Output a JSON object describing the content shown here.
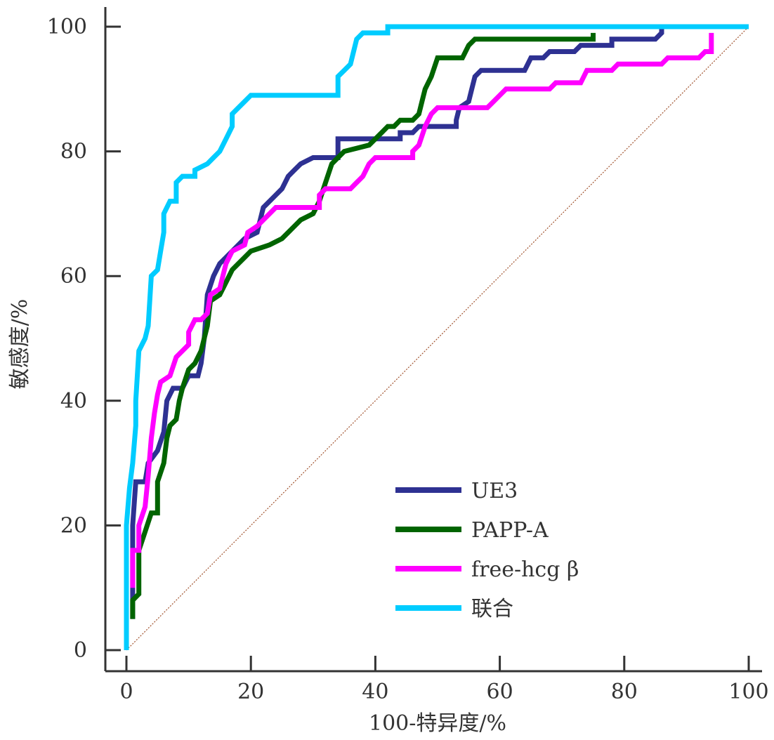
{
  "chart_data": {
    "type": "line",
    "title": "",
    "xlabel": "100-特异度/%",
    "ylabel": "敏感度/%",
    "xlim": [
      0,
      100
    ],
    "ylim": [
      0,
      100
    ],
    "x_ticks": [
      "0",
      "20",
      "40",
      "60",
      "80",
      "100"
    ],
    "y_ticks": [
      "0",
      "20",
      "40",
      "60",
      "80",
      "100"
    ],
    "grid": false,
    "legend_position": "bottom-right",
    "reference_line": {
      "name": "diagonal",
      "color": "#a0522d",
      "points": [
        [
          0,
          0
        ],
        [
          100,
          100
        ]
      ]
    },
    "series": [
      {
        "name": "UE3",
        "color": "#2e3192",
        "points": [
          [
            1,
            5
          ],
          [
            1,
            20
          ],
          [
            1.5,
            27
          ],
          [
            3,
            27
          ],
          [
            3.5,
            30
          ],
          [
            5,
            32
          ],
          [
            6,
            35
          ],
          [
            6.5,
            40
          ],
          [
            7.5,
            42
          ],
          [
            9,
            42
          ],
          [
            10,
            44
          ],
          [
            11.5,
            44
          ],
          [
            12,
            46
          ],
          [
            12.5,
            50
          ],
          [
            13,
            57
          ],
          [
            14,
            60
          ],
          [
            15,
            62
          ],
          [
            16,
            63
          ],
          [
            17,
            64
          ],
          [
            19,
            66
          ],
          [
            21,
            67
          ],
          [
            22,
            71
          ],
          [
            24,
            73
          ],
          [
            25,
            74
          ],
          [
            26,
            76
          ],
          [
            27,
            77
          ],
          [
            28,
            78
          ],
          [
            30,
            79
          ],
          [
            34,
            79
          ],
          [
            34,
            82
          ],
          [
            44,
            82
          ],
          [
            44,
            83
          ],
          [
            46,
            83
          ],
          [
            47,
            84
          ],
          [
            53,
            84
          ],
          [
            53,
            85
          ],
          [
            53.5,
            87
          ],
          [
            55,
            88
          ],
          [
            55.5,
            90
          ],
          [
            56,
            92
          ],
          [
            57,
            93
          ],
          [
            64,
            93
          ],
          [
            65,
            95
          ],
          [
            67,
            95
          ],
          [
            68,
            96
          ],
          [
            72,
            96
          ],
          [
            73,
            97
          ],
          [
            78,
            97
          ],
          [
            78,
            98
          ],
          [
            85,
            98
          ],
          [
            86,
            99
          ],
          [
            86,
            100
          ]
        ]
      },
      {
        "name": "PAPP-A",
        "color": "#006400",
        "points": [
          [
            1,
            5
          ],
          [
            1,
            8
          ],
          [
            2,
            9
          ],
          [
            2,
            16
          ],
          [
            3,
            19
          ],
          [
            4,
            22
          ],
          [
            5,
            22
          ],
          [
            5,
            27
          ],
          [
            6,
            30
          ],
          [
            6.5,
            34
          ],
          [
            7,
            36
          ],
          [
            8,
            37
          ],
          [
            8.5,
            40
          ],
          [
            9,
            42
          ],
          [
            10,
            45
          ],
          [
            11,
            46
          ],
          [
            12,
            48
          ],
          [
            13,
            52
          ],
          [
            13.5,
            56
          ],
          [
            15,
            57
          ],
          [
            16,
            59
          ],
          [
            17,
            61
          ],
          [
            18,
            62
          ],
          [
            19,
            63
          ],
          [
            20,
            64
          ],
          [
            23,
            65
          ],
          [
            25,
            66
          ],
          [
            26,
            67
          ],
          [
            27,
            68
          ],
          [
            28,
            69
          ],
          [
            30,
            70
          ],
          [
            31,
            72
          ],
          [
            32,
            75
          ],
          [
            33,
            78
          ],
          [
            34,
            79
          ],
          [
            35,
            80
          ],
          [
            39,
            81
          ],
          [
            41,
            83
          ],
          [
            42,
            84
          ],
          [
            43,
            84
          ],
          [
            44,
            85
          ],
          [
            46,
            85
          ],
          [
            47,
            86
          ],
          [
            47.5,
            88
          ],
          [
            48,
            90
          ],
          [
            49,
            92
          ],
          [
            50,
            95
          ],
          [
            54,
            95
          ],
          [
            55,
            97
          ],
          [
            56,
            98
          ],
          [
            75,
            98
          ],
          [
            75,
            99
          ]
        ]
      },
      {
        "name": "free-hcg β",
        "color": "#ff00ff",
        "points": [
          [
            1,
            10
          ],
          [
            1,
            16
          ],
          [
            2,
            16
          ],
          [
            2,
            20
          ],
          [
            3,
            23
          ],
          [
            3.5,
            28
          ],
          [
            4,
            34
          ],
          [
            4.5,
            38
          ],
          [
            5,
            41
          ],
          [
            5.5,
            43
          ],
          [
            7,
            44
          ],
          [
            8,
            47
          ],
          [
            9,
            48
          ],
          [
            10,
            49
          ],
          [
            10,
            51
          ],
          [
            11,
            53
          ],
          [
            12,
            53
          ],
          [
            13,
            54
          ],
          [
            13.5,
            57
          ],
          [
            15,
            58
          ],
          [
            15.5,
            60
          ],
          [
            16,
            62
          ],
          [
            17,
            64
          ],
          [
            19,
            65
          ],
          [
            19.5,
            67
          ],
          [
            21,
            68
          ],
          [
            22,
            69
          ],
          [
            23,
            70
          ],
          [
            24,
            71
          ],
          [
            31,
            71
          ],
          [
            31,
            73
          ],
          [
            32,
            74
          ],
          [
            36,
            74
          ],
          [
            37,
            75
          ],
          [
            38,
            76
          ],
          [
            39,
            78
          ],
          [
            40,
            79
          ],
          [
            46,
            79
          ],
          [
            46,
            80
          ],
          [
            47,
            81
          ],
          [
            48,
            84
          ],
          [
            49,
            86
          ],
          [
            50,
            87
          ],
          [
            58,
            87
          ],
          [
            59,
            88
          ],
          [
            60,
            89
          ],
          [
            61,
            90
          ],
          [
            68,
            90
          ],
          [
            69,
            91
          ],
          [
            73,
            91
          ],
          [
            74,
            93
          ],
          [
            78,
            93
          ],
          [
            79,
            94
          ],
          [
            86,
            94
          ],
          [
            87,
            95
          ],
          [
            92,
            95
          ],
          [
            93,
            96
          ],
          [
            94,
            96
          ],
          [
            94,
            99
          ]
        ]
      },
      {
        "name": "联合",
        "color": "#00ccff",
        "points": [
          [
            0,
            0
          ],
          [
            0,
            20
          ],
          [
            0.5,
            26
          ],
          [
            1,
            30
          ],
          [
            1.5,
            36
          ],
          [
            1.5,
            40
          ],
          [
            2,
            48
          ],
          [
            3,
            50
          ],
          [
            3.5,
            52
          ],
          [
            4,
            60
          ],
          [
            5,
            61
          ],
          [
            5.5,
            64
          ],
          [
            6,
            67
          ],
          [
            6,
            70
          ],
          [
            7,
            72
          ],
          [
            8,
            72
          ],
          [
            8,
            75
          ],
          [
            9,
            76
          ],
          [
            11,
            76
          ],
          [
            11,
            77
          ],
          [
            13,
            78
          ],
          [
            14,
            79
          ],
          [
            15,
            80
          ],
          [
            16,
            82
          ],
          [
            17,
            84
          ],
          [
            17,
            86
          ],
          [
            18,
            87
          ],
          [
            19,
            88
          ],
          [
            20,
            89
          ],
          [
            34,
            89
          ],
          [
            34,
            92
          ],
          [
            35,
            93
          ],
          [
            36,
            94
          ],
          [
            36.5,
            96
          ],
          [
            37,
            98
          ],
          [
            38,
            99
          ],
          [
            42,
            99
          ],
          [
            42,
            100
          ],
          [
            100,
            100
          ]
        ]
      }
    ]
  }
}
